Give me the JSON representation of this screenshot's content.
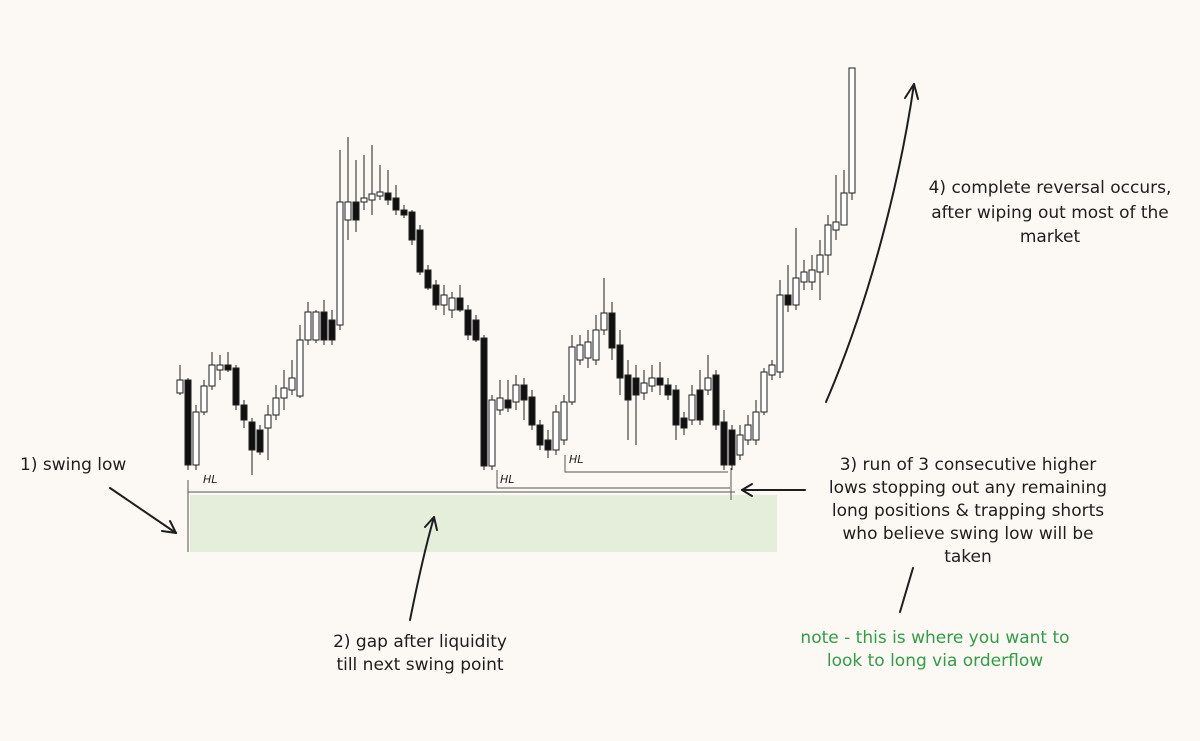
{
  "chart_data": {
    "type": "candlestick",
    "candles": [
      [
        348,
        376,
        346,
        361
      ],
      [
        361,
        363,
        271,
        276
      ],
      [
        276,
        336,
        271,
        329
      ],
      [
        329,
        361,
        326,
        355
      ],
      [
        355,
        389,
        351,
        376
      ],
      [
        371,
        386,
        361,
        376
      ],
      [
        376,
        389,
        369,
        371
      ],
      [
        373,
        376,
        331,
        336
      ],
      [
        336,
        341,
        313,
        321
      ],
      [
        319,
        323,
        266,
        291
      ],
      [
        311,
        316,
        286,
        289
      ],
      [
        313,
        336,
        281,
        326
      ],
      [
        326,
        356,
        321,
        343
      ],
      [
        343,
        371,
        331,
        353
      ],
      [
        351,
        381,
        346,
        363
      ],
      [
        345,
        416,
        343,
        401
      ],
      [
        401,
        439,
        396,
        429
      ],
      [
        401,
        431,
        398,
        429
      ],
      [
        429,
        441,
        396,
        401
      ],
      [
        421,
        431,
        396,
        401
      ],
      [
        416,
        591,
        411,
        539
      ],
      [
        521,
        604,
        501,
        539
      ],
      [
        539,
        581,
        509,
        521
      ],
      [
        539,
        586,
        531,
        543
      ],
      [
        541,
        596,
        526,
        547
      ],
      [
        545,
        576,
        541,
        549
      ],
      [
        548,
        571,
        536,
        541
      ],
      [
        543,
        556,
        526,
        531
      ],
      [
        531,
        536,
        523,
        526
      ],
      [
        529,
        531,
        496,
        501
      ],
      [
        511,
        516,
        466,
        469
      ],
      [
        471,
        476,
        451,
        453
      ],
      [
        456,
        461,
        431,
        436
      ],
      [
        436,
        456,
        426,
        446
      ],
      [
        431,
        449,
        423,
        443
      ],
      [
        443,
        456,
        429,
        431
      ],
      [
        431,
        436,
        401,
        406
      ],
      [
        421,
        426,
        399,
        401
      ],
      [
        403,
        406,
        271,
        275
      ],
      [
        275,
        346,
        271,
        341
      ],
      [
        331,
        361,
        326,
        343
      ],
      [
        341,
        361,
        329,
        333
      ],
      [
        339,
        366,
        331,
        356
      ],
      [
        356,
        363,
        321,
        341
      ],
      [
        344,
        351,
        311,
        316
      ],
      [
        316,
        321,
        291,
        296
      ],
      [
        301,
        311,
        283,
        291
      ],
      [
        291,
        336,
        286,
        329
      ],
      [
        301,
        346,
        296,
        339
      ],
      [
        339,
        406,
        336,
        394
      ],
      [
        381,
        406,
        376,
        396
      ],
      [
        383,
        411,
        373,
        399
      ],
      [
        381,
        426,
        376,
        411
      ],
      [
        411,
        463,
        406,
        428
      ],
      [
        428,
        439,
        381,
        393
      ],
      [
        396,
        411,
        346,
        363
      ],
      [
        366,
        381,
        301,
        341
      ],
      [
        363,
        376,
        296,
        346
      ],
      [
        348,
        371,
        341,
        358
      ],
      [
        355,
        376,
        349,
        363
      ],
      [
        363,
        379,
        346,
        356
      ],
      [
        356,
        363,
        341,
        346
      ],
      [
        351,
        356,
        301,
        316
      ],
      [
        323,
        329,
        306,
        313
      ],
      [
        321,
        356,
        316,
        346
      ],
      [
        351,
        371,
        316,
        321
      ],
      [
        351,
        386,
        346,
        363
      ],
      [
        366,
        371,
        311,
        316
      ],
      [
        319,
        331,
        271,
        276
      ],
      [
        311,
        316,
        271,
        276
      ],
      [
        286,
        316,
        281,
        306
      ],
      [
        301,
        326,
        296,
        316
      ],
      [
        301,
        341,
        296,
        329
      ],
      [
        329,
        373,
        326,
        369
      ],
      [
        366,
        381,
        361,
        376
      ],
      [
        369,
        461,
        363,
        446
      ],
      [
        446,
        476,
        429,
        436
      ],
      [
        436,
        513,
        431,
        463
      ],
      [
        459,
        481,
        451,
        469
      ],
      [
        459,
        486,
        451,
        471
      ],
      [
        469,
        501,
        441,
        486
      ],
      [
        486,
        526,
        466,
        516
      ],
      [
        511,
        566,
        501,
        519
      ],
      [
        516,
        571,
        516,
        548
      ],
      [
        548,
        673,
        541,
        673
      ]
    ],
    "labels": [
      "HL",
      "HL",
      "HL"
    ]
  },
  "annotations": {
    "swing_low": "1) swing low",
    "gap": [
      "2) gap after liquidity",
      "till next swing point"
    ],
    "higher_lows": [
      "3) run of 3 consecutive higher",
      "lows stopping out any remaining",
      "long positions & trapping shorts",
      "who believe swing low will be",
      "taken"
    ],
    "reversal": [
      "4) complete reversal occurs,",
      "after wiping out most of the",
      "market"
    ],
    "note": [
      "note - this is where you want to",
      "look to long via orderflow"
    ]
  }
}
